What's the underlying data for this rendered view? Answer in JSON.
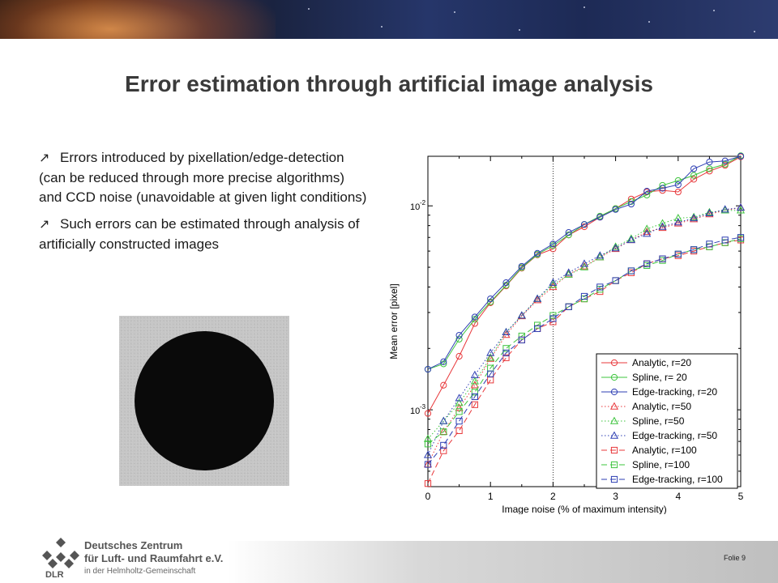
{
  "slide": {
    "title": "Error estimation through artificial image analysis",
    "bullets": [
      "Errors introduced by pixellation/edge-detection (can be reduced through more precise algorithms) and CCD noise (unavoidable at given light conditions)",
      "Such errors can be estimated through analysis of artificially constructed images"
    ]
  },
  "footer": {
    "org_line1": "Deutsches Zentrum",
    "org_line2": "für Luft- und Raumfahrt e.V.",
    "org_line3": "in der Helmholtz-Gemeinschaft",
    "logo_abbr": "DLR",
    "page_label": "Folie 9"
  },
  "chart_data": {
    "type": "line",
    "xlabel": "Image noise (% of maximum intensity)",
    "ylabel": "Mean error [pixel]",
    "xlim": [
      0,
      5
    ],
    "ylim": [
      0.00042,
      0.0175
    ],
    "yscale": "log",
    "xticks": [
      0,
      1,
      2,
      3,
      4,
      5
    ],
    "yticks": [
      {
        "value": 0.001,
        "label": "10",
        "exp": "-3"
      },
      {
        "value": 0.01,
        "label": "10",
        "exp": "-2"
      }
    ],
    "vline": 2,
    "legend_position": "bottom-right",
    "x": [
      0,
      0.25,
      0.5,
      0.75,
      1.0,
      1.25,
      1.5,
      1.75,
      2.0,
      2.25,
      2.5,
      2.75,
      3.0,
      3.25,
      3.5,
      3.75,
      4.0,
      4.25,
      4.5,
      4.75,
      5.0
    ],
    "series": [
      {
        "name": "Analytic, r=20",
        "color": "#e8383b",
        "dash": "solid",
        "marker": "circle",
        "values": [
          0.00096,
          0.00132,
          0.00183,
          0.00265,
          0.00335,
          0.00405,
          0.00495,
          0.00575,
          0.00615,
          0.0072,
          0.0079,
          0.0088,
          0.0097,
          0.0108,
          0.0117,
          0.0119,
          0.0117,
          0.0135,
          0.0148,
          0.0158,
          0.0174
        ]
      },
      {
        "name": "Spline, r= 20",
        "color": "#3ec43e",
        "dash": "solid",
        "marker": "circle",
        "values": [
          0.00158,
          0.00168,
          0.00222,
          0.00278,
          0.00338,
          0.00408,
          0.00498,
          0.00578,
          0.00638,
          0.0072,
          0.0081,
          0.0089,
          0.0097,
          0.0105,
          0.0113,
          0.0126,
          0.0133,
          0.0141,
          0.0152,
          0.016,
          0.0176
        ]
      },
      {
        "name": "Edge-tracking, r=20",
        "color": "#2e3fb3",
        "dash": "solid",
        "marker": "circle",
        "values": [
          0.00158,
          0.00172,
          0.00232,
          0.00285,
          0.0035,
          0.0042,
          0.00505,
          0.00585,
          0.0065,
          0.0074,
          0.0081,
          0.0088,
          0.0096,
          0.0102,
          0.0118,
          0.0122,
          0.0127,
          0.0152,
          0.0164,
          0.0166,
          0.0175
        ]
      },
      {
        "name": "Analytic, r=50",
        "color": "#e8383b",
        "dash": "dotted",
        "marker": "triangle",
        "values": [
          0.00054,
          0.00078,
          0.00102,
          0.00132,
          0.00178,
          0.00233,
          0.00288,
          0.00345,
          0.004,
          0.00462,
          0.00505,
          0.0056,
          0.00615,
          0.0068,
          0.00745,
          0.0078,
          0.0082,
          0.0086,
          0.0091,
          0.0095,
          0.0098
        ]
      },
      {
        "name": "Spline, r=50",
        "color": "#3ec43e",
        "dash": "dotted",
        "marker": "triangle",
        "values": [
          0.00072,
          0.00088,
          0.00108,
          0.00138,
          0.0018,
          0.0024,
          0.0029,
          0.0035,
          0.0041,
          0.0046,
          0.005,
          0.0056,
          0.0063,
          0.0069,
          0.0077,
          0.0082,
          0.0087,
          0.0088,
          0.0093,
          0.0095,
          0.0095
        ]
      },
      {
        "name": "Edge-tracking, r=50",
        "color": "#2e3fb3",
        "dash": "dotted",
        "marker": "triangle",
        "values": [
          0.0006,
          0.00088,
          0.00114,
          0.00148,
          0.0019,
          0.0024,
          0.0029,
          0.0035,
          0.0042,
          0.0047,
          0.0052,
          0.0057,
          0.0062,
          0.0068,
          0.0073,
          0.0079,
          0.0083,
          0.0087,
          0.0092,
          0.0096,
          0.0098
        ]
      },
      {
        "name": "Analytic, r=100",
        "color": "#e8383b",
        "dash": "dashed",
        "marker": "square",
        "values": [
          0.000435,
          0.00063,
          0.00079,
          0.00106,
          0.0014,
          0.0018,
          0.0022,
          0.0025,
          0.0027,
          0.0032,
          0.0035,
          0.0038,
          0.0043,
          0.0047,
          0.0052,
          0.0055,
          0.0057,
          0.006,
          0.0063,
          0.0066,
          0.0068
        ]
      },
      {
        "name": "Spline, r=100",
        "color": "#3ec43e",
        "dash": "dashed",
        "marker": "square",
        "values": [
          0.00068,
          0.00078,
          0.00098,
          0.00122,
          0.0016,
          0.002,
          0.0023,
          0.0026,
          0.0029,
          0.0032,
          0.0035,
          0.0039,
          0.0043,
          0.0048,
          0.0051,
          0.0054,
          0.0058,
          0.0061,
          0.0063,
          0.0066,
          0.0069
        ]
      },
      {
        "name": "Edge-tracking, r=100",
        "color": "#2e3fb3",
        "dash": "dashed",
        "marker": "square",
        "values": [
          0.00054,
          0.00067,
          0.00088,
          0.00116,
          0.0015,
          0.0019,
          0.0022,
          0.0025,
          0.0028,
          0.0032,
          0.0036,
          0.004,
          0.0043,
          0.0048,
          0.0052,
          0.0055,
          0.0058,
          0.0061,
          0.0065,
          0.0068,
          0.007
        ]
      }
    ]
  }
}
